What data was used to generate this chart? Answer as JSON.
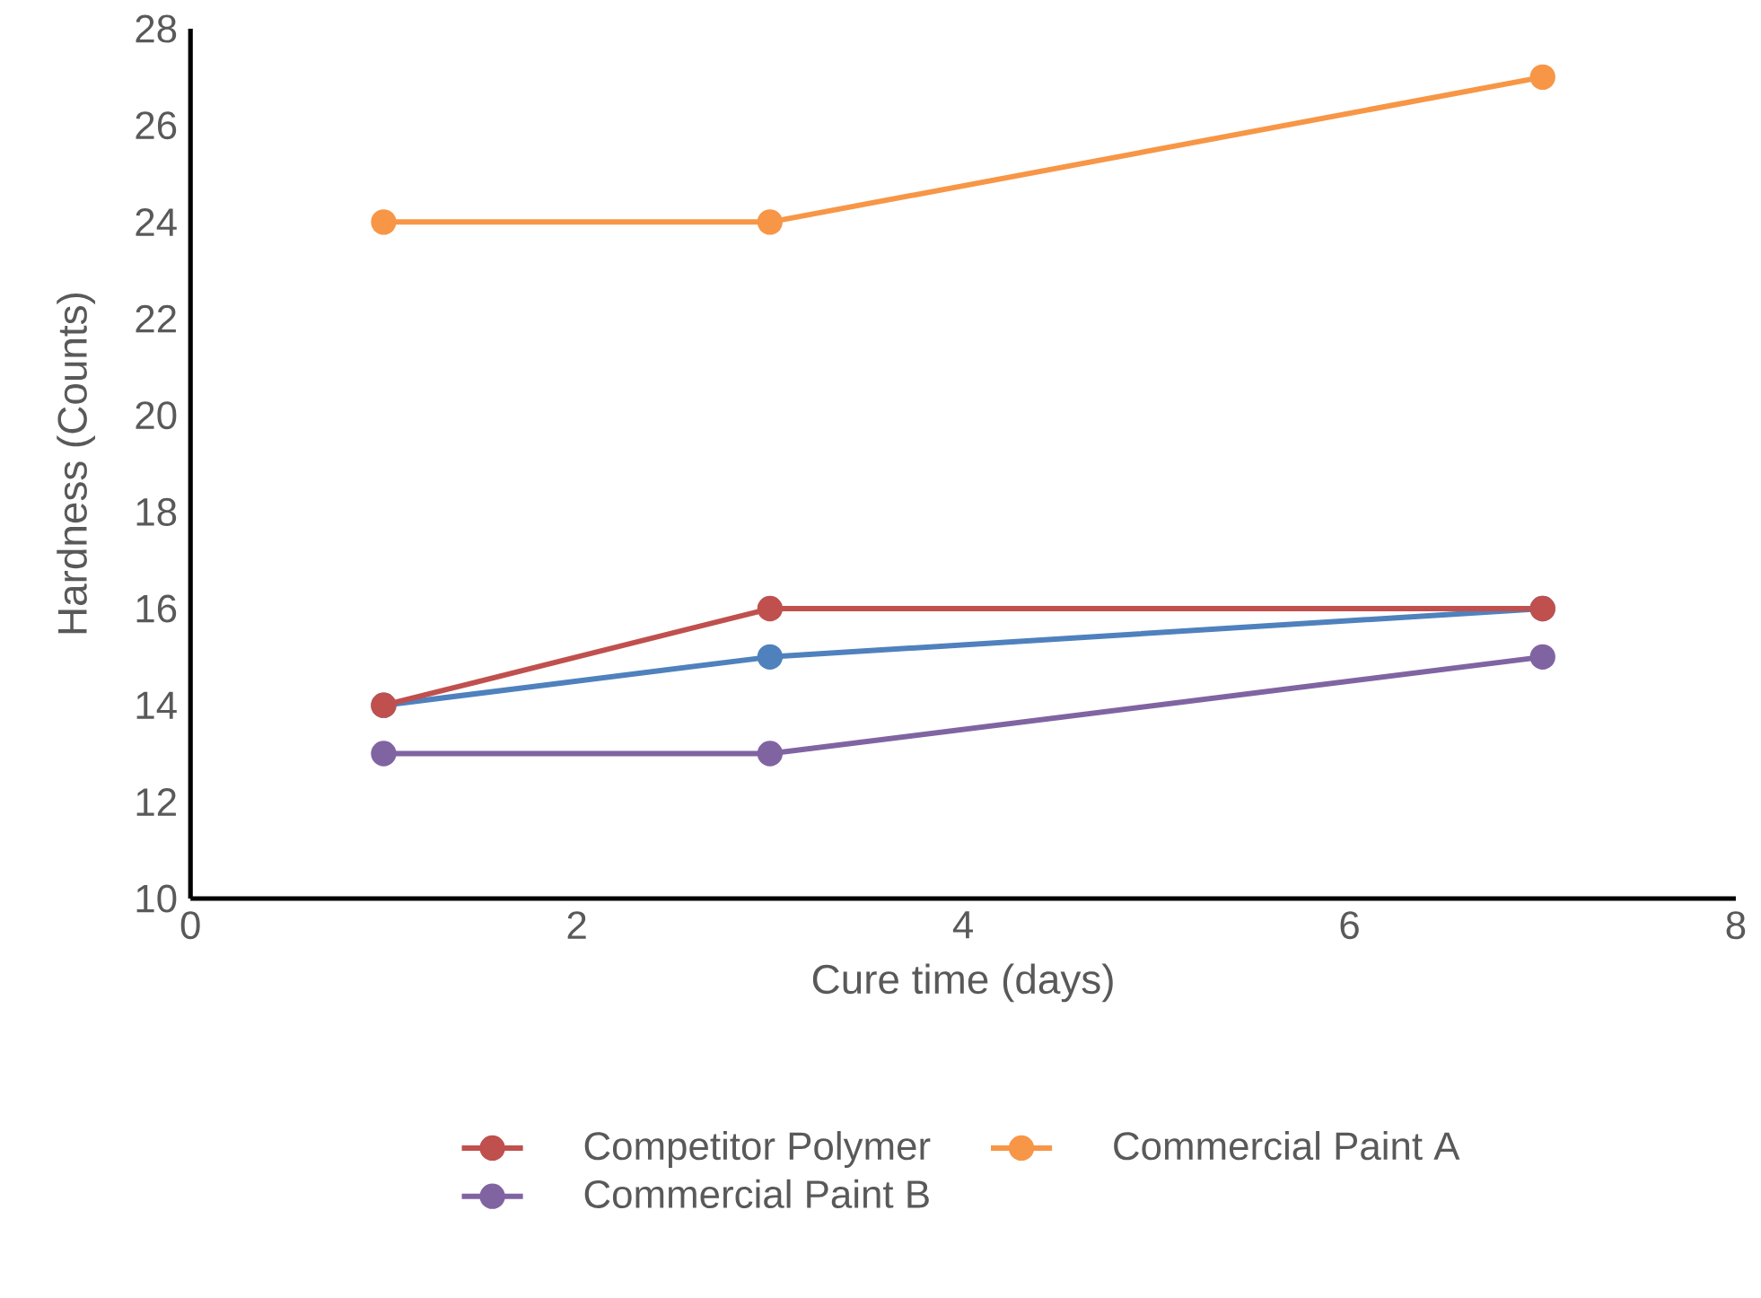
{
  "chart_data": {
    "type": "line",
    "xlabel": "Cure time (days)",
    "ylabel": "Hardness (Counts)",
    "xlim": [
      0,
      8
    ],
    "xticks": [
      0,
      2,
      4,
      6,
      8
    ],
    "ylim": [
      10,
      28
    ],
    "yticks": [
      10,
      12,
      14,
      16,
      18,
      20,
      22,
      24,
      26,
      28
    ],
    "grid": false,
    "legend": "bottom",
    "marker": "circle",
    "line_style": "solid",
    "x": [
      1,
      3,
      7
    ],
    "series": [
      {
        "color": "#4f81bd",
        "values": [
          14,
          15,
          16
        ]
      },
      {
        "name": "Competitor Polymer",
        "color": "#c0504d",
        "values": [
          14,
          16,
          16
        ]
      },
      {
        "name": "Commercial Paint A",
        "color": "#f79646",
        "values": [
          24,
          24,
          27
        ]
      },
      {
        "name": "Commercial Paint B",
        "color": "#8064a2",
        "values": [
          13,
          13,
          15
        ]
      }
    ]
  }
}
